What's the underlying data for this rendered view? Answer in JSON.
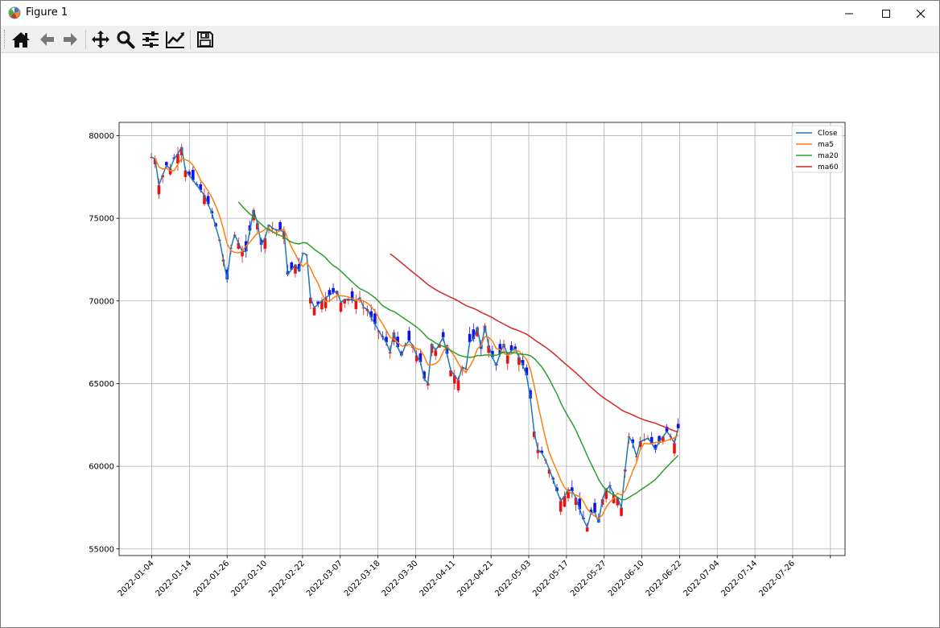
{
  "window": {
    "title": "Figure 1"
  },
  "toolbar": {
    "items": [
      {
        "name": "home-icon"
      },
      {
        "name": "back-arrow-icon"
      },
      {
        "name": "forward-arrow-icon"
      },
      {
        "name": "pan-icon"
      },
      {
        "name": "zoom-icon"
      },
      {
        "name": "subplots-icon"
      },
      {
        "name": "edit-axis-icon"
      },
      {
        "name": "save-icon"
      }
    ]
  },
  "chart_data": {
    "type": "candlestick-line",
    "title": "",
    "xlabel": "",
    "ylabel": "",
    "xticks": [
      "2022-01-04",
      "2022-01-14",
      "2022-01-26",
      "2022-02-10",
      "2022-02-22",
      "2022-03-07",
      "2022-03-18",
      "2022-03-30",
      "2022-04-11",
      "2022-04-21",
      "2022-05-03",
      "2022-05-17",
      "2022-05-27",
      "2022-06-10",
      "2022-06-22",
      "2022-07-04",
      "2022-07-14",
      "2022-07-26"
    ],
    "yticks": [
      55000,
      60000,
      65000,
      70000,
      75000,
      80000
    ],
    "ylim": [
      54600,
      80800
    ],
    "grid": true,
    "legend": {
      "position": "top-right",
      "entries": [
        "Close",
        "ma5",
        "ma20",
        "ma60"
      ]
    },
    "colors": {
      "Close": "#1f77b4",
      "ma5": "#ff7f0e",
      "ma20": "#2ca02c",
      "ma60": "#d62728",
      "up_candle": "#ee1111",
      "down_candle": "#1111ee"
    },
    "close_anchors": [
      [
        0,
        78700
      ],
      [
        1,
        78600
      ],
      [
        2,
        77000
      ],
      [
        4,
        78200
      ],
      [
        5,
        78000
      ],
      [
        6,
        78600
      ],
      [
        7,
        78900
      ],
      [
        8,
        79300
      ],
      [
        9,
        77900
      ],
      [
        10,
        77600
      ],
      [
        11,
        77300
      ],
      [
        13,
        76700
      ],
      [
        14,
        76400
      ],
      [
        16,
        75300
      ],
      [
        17,
        74500
      ],
      [
        18,
        73700
      ],
      [
        20,
        71300
      ],
      [
        21,
        73200
      ],
      [
        22,
        74000
      ],
      [
        23,
        73500
      ],
      [
        24,
        73000
      ],
      [
        25,
        73000
      ],
      [
        27,
        75500
      ],
      [
        28,
        74700
      ],
      [
        29,
        73400
      ],
      [
        30,
        73800
      ],
      [
        31,
        74600
      ],
      [
        32,
        74400
      ],
      [
        33,
        74300
      ],
      [
        35,
        74200
      ],
      [
        36,
        71600
      ],
      [
        37,
        71900
      ],
      [
        38,
        72200
      ],
      [
        39,
        71800
      ],
      [
        40,
        72900
      ],
      [
        41,
        72800
      ],
      [
        42,
        70200
      ],
      [
        43,
        69600
      ],
      [
        44,
        69800
      ],
      [
        46,
        70200
      ],
      [
        48,
        70500
      ],
      [
        49,
        70600
      ],
      [
        50,
        69900
      ],
      [
        51,
        70100
      ],
      [
        52,
        70100
      ],
      [
        54,
        70000
      ],
      [
        55,
        70200
      ],
      [
        56,
        69600
      ],
      [
        57,
        69500
      ],
      [
        58,
        69000
      ],
      [
        59,
        68600
      ],
      [
        60,
        68200
      ],
      [
        61,
        67800
      ],
      [
        62,
        67500
      ],
      [
        63,
        66900
      ],
      [
        64,
        68100
      ],
      [
        65,
        67200
      ],
      [
        66,
        66700
      ],
      [
        67,
        67300
      ],
      [
        68,
        67600
      ],
      [
        69,
        67300
      ],
      [
        70,
        66700
      ],
      [
        71,
        66300
      ],
      [
        72,
        65300
      ],
      [
        73,
        65000
      ],
      [
        74,
        67400
      ],
      [
        75,
        67000
      ],
      [
        76,
        67400
      ],
      [
        77,
        67800
      ],
      [
        78,
        66800
      ],
      [
        79,
        65800
      ],
      [
        80,
        65500
      ],
      [
        81,
        65200
      ],
      [
        82,
        66000
      ],
      [
        83,
        65900
      ],
      [
        84,
        67500
      ],
      [
        85,
        67700
      ],
      [
        86,
        68400
      ],
      [
        87,
        67100
      ],
      [
        88,
        68500
      ],
      [
        89,
        67300
      ],
      [
        90,
        66600
      ],
      [
        91,
        66100
      ],
      [
        92,
        66800
      ],
      [
        93,
        67400
      ],
      [
        94,
        66700
      ],
      [
        95,
        67000
      ],
      [
        96,
        67100
      ],
      [
        97,
        66600
      ],
      [
        98,
        66100
      ],
      [
        99,
        65500
      ],
      [
        100,
        64100
      ],
      [
        101,
        62100
      ],
      [
        102,
        61000
      ],
      [
        103,
        60800
      ],
      [
        104,
        60400
      ],
      [
        105,
        59800
      ],
      [
        106,
        59200
      ],
      [
        107,
        58500
      ],
      [
        108,
        57900
      ],
      [
        109,
        58200
      ],
      [
        110,
        58600
      ],
      [
        111,
        58500
      ],
      [
        112,
        58100
      ],
      [
        113,
        57400
      ],
      [
        114,
        56800
      ],
      [
        115,
        56300
      ],
      [
        116,
        57200
      ],
      [
        117,
        57200
      ],
      [
        118,
        56600
      ],
      [
        119,
        58000
      ],
      [
        120,
        58600
      ],
      [
        121,
        58800
      ],
      [
        122,
        58300
      ],
      [
        123,
        58100
      ],
      [
        124,
        57500
      ],
      [
        125,
        59800
      ],
      [
        126,
        61800
      ],
      [
        127,
        61400
      ],
      [
        128,
        60600
      ],
      [
        129,
        61500
      ],
      [
        130,
        61600
      ],
      [
        131,
        61700
      ],
      [
        132,
        61400
      ],
      [
        133,
        61000
      ],
      [
        134,
        61500
      ],
      [
        135,
        61800
      ],
      [
        136,
        62100
      ],
      [
        137,
        61800
      ],
      [
        138,
        61400
      ],
      [
        139,
        62300
      ]
    ],
    "ma20_start_index": 23,
    "ma60_start_index": 63,
    "n_days": 140
  }
}
